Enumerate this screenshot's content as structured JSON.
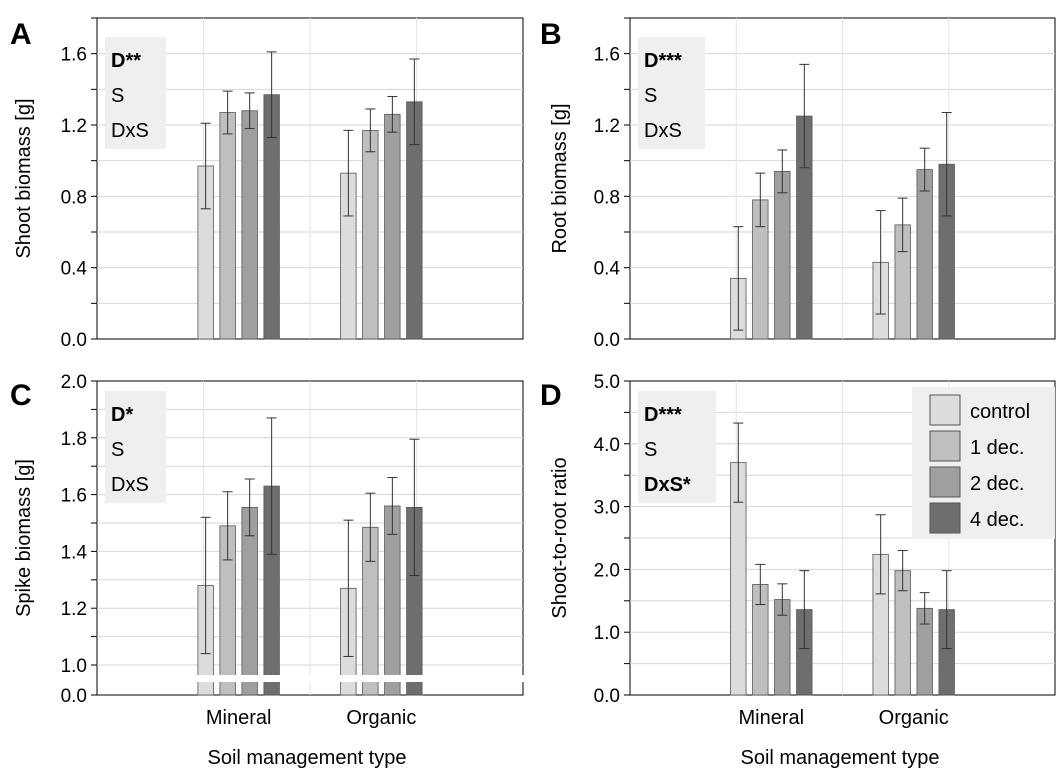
{
  "figure": {
    "shared_xlabel": "Soil management type",
    "group_labels": [
      "Mineral",
      "Organic"
    ],
    "series_colors": [
      "#dcdcdc",
      "#bfbfbf",
      "#9f9f9f",
      "#6e6e6e"
    ],
    "legend": {
      "placement": "top-right",
      "entries": [
        "control",
        "1 dec.",
        "2 dec.",
        "4 dec."
      ]
    }
  },
  "chart_data": [
    {
      "panel": "A",
      "type": "bar",
      "ylabel": "Shoot biomass [g]",
      "xlabel": "",
      "ylim": [
        0,
        1.8
      ],
      "yticks": [
        "0.0",
        "0.4",
        "0.8",
        "1.2",
        "1.6"
      ],
      "categories": [
        "Mineral",
        "Organic"
      ],
      "series": [
        {
          "values": [
            0.97,
            0.93
          ],
          "errors": [
            0.24,
            0.24
          ]
        },
        {
          "values": [
            1.27,
            1.17
          ],
          "errors": [
            0.12,
            0.12
          ]
        },
        {
          "values": [
            1.28,
            1.26
          ],
          "errors": [
            0.1,
            0.1
          ]
        },
        {
          "values": [
            1.37,
            1.33
          ],
          "errors": [
            0.24,
            0.24
          ]
        }
      ],
      "stats": [
        {
          "text": "D**",
          "bold": true
        },
        {
          "text": "S",
          "bold": false
        },
        {
          "text": "DxS",
          "bold": false
        }
      ]
    },
    {
      "panel": "B",
      "type": "bar",
      "ylabel": "Root biomass [g]",
      "xlabel": "",
      "ylim": [
        0,
        1.8
      ],
      "yticks": [
        "0.0",
        "0.4",
        "0.8",
        "1.2",
        "1.6"
      ],
      "categories": [
        "Mineral",
        "Organic"
      ],
      "series": [
        {
          "values": [
            0.34,
            0.43
          ],
          "errors": [
            0.29,
            0.29
          ]
        },
        {
          "values": [
            0.78,
            0.64
          ],
          "errors": [
            0.15,
            0.15
          ]
        },
        {
          "values": [
            0.94,
            0.95
          ],
          "errors": [
            0.12,
            0.12
          ]
        },
        {
          "values": [
            1.25,
            0.98
          ],
          "errors": [
            0.29,
            0.29
          ]
        }
      ],
      "stats": [
        {
          "text": "D***",
          "bold": true
        },
        {
          "text": "S",
          "bold": false
        },
        {
          "text": "DxS",
          "bold": false
        }
      ]
    },
    {
      "panel": "C",
      "type": "bar",
      "ylabel": "Spike biomass [g]",
      "xlabel": "",
      "ylim": [
        0.9,
        2.0
      ],
      "axis_break": true,
      "yticks": [
        "0.0",
        "1.0",
        "1.2",
        "1.4",
        "1.6",
        "1.8",
        "2.0"
      ],
      "categories": [
        "Mineral",
        "Organic"
      ],
      "series": [
        {
          "values": [
            1.28,
            1.27
          ],
          "errors": [
            0.24,
            0.24
          ]
        },
        {
          "values": [
            1.49,
            1.485
          ],
          "errors": [
            0.12,
            0.12
          ]
        },
        {
          "values": [
            1.555,
            1.56
          ],
          "errors": [
            0.1,
            0.1
          ]
        },
        {
          "values": [
            1.63,
            1.555
          ],
          "errors": [
            0.24,
            0.24
          ]
        }
      ],
      "stats": [
        {
          "text": "D*",
          "bold": true
        },
        {
          "text": "S",
          "bold": false
        },
        {
          "text": "DxS",
          "bold": false
        }
      ]
    },
    {
      "panel": "D",
      "type": "bar",
      "ylabel": "Shoot-to-root ratio",
      "xlabel": "",
      "ylim": [
        0,
        5.0
      ],
      "yticks": [
        "0.0",
        "1.0",
        "2.0",
        "3.0",
        "4.0",
        "5.0"
      ],
      "categories": [
        "Mineral",
        "Organic"
      ],
      "series": [
        {
          "values": [
            3.7,
            2.24
          ],
          "errors": [
            0.63,
            0.63
          ]
        },
        {
          "values": [
            1.76,
            1.98
          ],
          "errors": [
            0.32,
            0.32
          ]
        },
        {
          "values": [
            1.52,
            1.38
          ],
          "errors": [
            0.25,
            0.25
          ]
        },
        {
          "values": [
            1.36,
            1.36
          ],
          "errors": [
            0.62,
            0.62
          ]
        }
      ],
      "stats": [
        {
          "text": "D***",
          "bold": true
        },
        {
          "text": "S",
          "bold": false
        },
        {
          "text": "DxS*",
          "bold": true
        }
      ]
    }
  ]
}
